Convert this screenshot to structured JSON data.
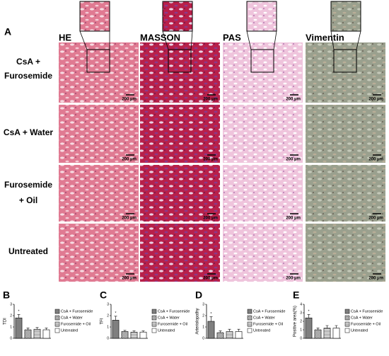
{
  "panel_a": {
    "label": "A",
    "columns": [
      "HE",
      "MASSON",
      "PAS",
      "Vimentin"
    ],
    "rows": [
      "CsA +",
      "Furosemide",
      "CsA + Water",
      "Furosemide",
      "+ Oil",
      "Untreated"
    ],
    "scale_bar": "200 μm"
  },
  "chart_data": [
    {
      "type": "bar",
      "label": "B",
      "ylabel": "TDI",
      "categories": [
        "CsA + Furosemide",
        "CsA + Water",
        "Furosemide + Oil",
        "Untreated"
      ],
      "values": [
        1.8,
        0.75,
        0.8,
        0.75
      ],
      "errors": [
        0.3,
        0.15,
        0.15,
        0.15
      ],
      "significance_labels": [
        "*",
        null,
        null,
        null
      ],
      "color": "#7f7f7f",
      "patterns": [
        "solid",
        "dots",
        "hlines",
        "none"
      ],
      "ylim": [
        0,
        3
      ],
      "yticks": [
        0,
        1,
        2,
        3
      ]
    },
    {
      "type": "bar",
      "label": "C",
      "ylabel": "TFI",
      "categories": [
        "CsA + Furosemide",
        "CsA + Water",
        "Furosemide + Oil",
        "Untreated"
      ],
      "values": [
        1.6,
        0.6,
        0.55,
        0.55
      ],
      "errors": [
        0.35,
        0.1,
        0.1,
        0.1
      ],
      "significance_labels": [
        "*",
        null,
        null,
        null
      ],
      "color": "#7f7f7f",
      "patterns": [
        "solid",
        "dots",
        "hlines",
        "none"
      ],
      "ylim": [
        0,
        3
      ],
      "yticks": [
        0,
        1,
        2,
        3
      ]
    },
    {
      "type": "bar",
      "label": "D",
      "ylabel": "Arteriolopathy",
      "categories": [
        "CsA + Furosemide",
        "CsA + Water",
        "Furosemide + Oil",
        "Untreated"
      ],
      "values": [
        1.5,
        0.5,
        0.6,
        0.6
      ],
      "errors": [
        0.4,
        0.15,
        0.2,
        0.2
      ],
      "significance_labels": [
        "*",
        null,
        null,
        null
      ],
      "color": "#7f7f7f",
      "patterns": [
        "solid",
        "dots",
        "hlines",
        "none"
      ],
      "ylim": [
        0,
        3
      ],
      "yticks": [
        0,
        1,
        2,
        3
      ]
    },
    {
      "type": "bar",
      "label": "E",
      "ylabel": "Positive area(%)",
      "categories": [
        "CsA + Furosemide",
        "CsA + Water",
        "Furosemide + Oil",
        "Untreated"
      ],
      "values": [
        2.4,
        1.0,
        1.2,
        1.2
      ],
      "errors": [
        0.4,
        0.2,
        0.3,
        0.3
      ],
      "significance_labels": [
        "*",
        null,
        null,
        null
      ],
      "color": "#7f7f7f",
      "patterns": [
        "solid",
        "dots",
        "hlines",
        "none"
      ],
      "ylim": [
        0,
        4
      ],
      "yticks": [
        0,
        1,
        2,
        3,
        4
      ]
    }
  ]
}
